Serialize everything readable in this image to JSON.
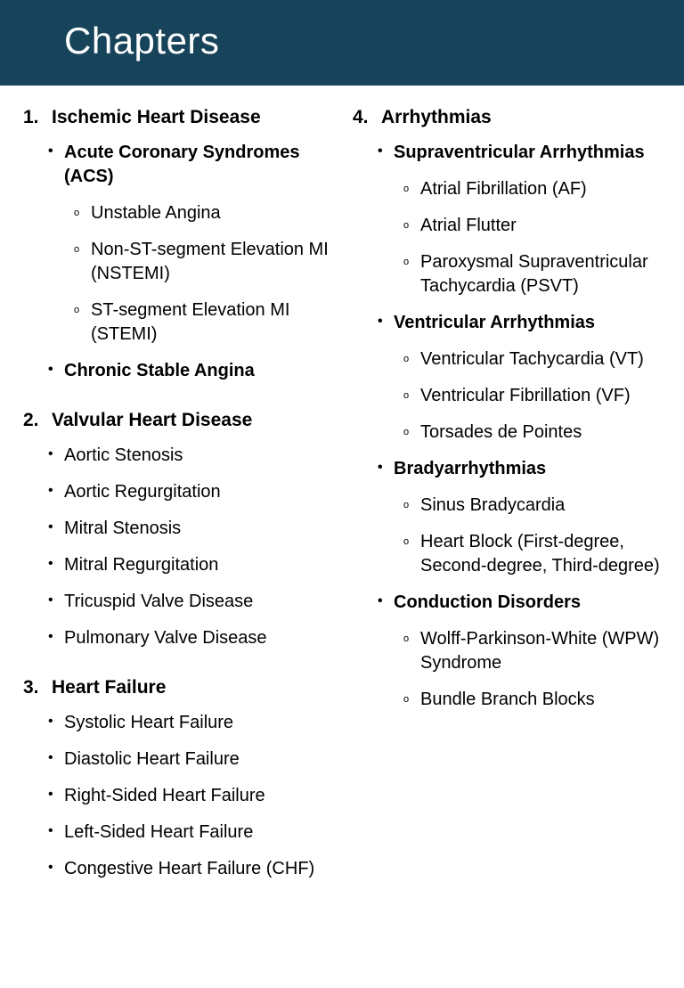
{
  "header": {
    "title": "Chapters"
  },
  "colors": {
    "header_bg": "#17445a",
    "header_text": "#ffffff",
    "body_bg": "#ffffff",
    "body_text": "#000000"
  },
  "chapters": [
    {
      "number": "1.",
      "title": "Ischemic Heart Disease",
      "items": [
        {
          "label": "Acute Coronary Syndromes (ACS)",
          "bold": true,
          "children": [
            {
              "label": "Unstable Angina"
            },
            {
              "label": "Non-ST-segment Elevation MI (NSTEMI)"
            },
            {
              "label": "ST-segment Elevation MI (STEMI)"
            }
          ]
        },
        {
          "label": "Chronic Stable Angina",
          "bold": true
        }
      ]
    },
    {
      "number": "2.",
      "title": "Valvular Heart Disease",
      "items": [
        {
          "label": "Aortic Stenosis"
        },
        {
          "label": "Aortic Regurgitation"
        },
        {
          "label": "Mitral Stenosis"
        },
        {
          "label": "Mitral Regurgitation"
        },
        {
          "label": "Tricuspid Valve Disease"
        },
        {
          "label": "Pulmonary Valve Disease"
        }
      ]
    },
    {
      "number": "3.",
      "title": "Heart Failure",
      "items": [
        {
          "label": "Systolic Heart Failure"
        },
        {
          "label": "Diastolic Heart Failure"
        },
        {
          "label": "Right-Sided Heart Failure"
        },
        {
          "label": "Left-Sided Heart Failure"
        },
        {
          "label": "Congestive Heart Failure (CHF)"
        }
      ]
    },
    {
      "number": "4.",
      "title": "Arrhythmias",
      "items": [
        {
          "label": "Supraventricular Arrhythmias",
          "bold": true,
          "children": [
            {
              "label": "Atrial Fibrillation (AF)"
            },
            {
              "label": "Atrial Flutter"
            },
            {
              "label": "Paroxysmal Supraventricular Tachycardia (PSVT)"
            }
          ]
        },
        {
          "label": "Ventricular Arrhythmias",
          "bold": true,
          "children": [
            {
              "label": "Ventricular Tachycardia (VT)"
            },
            {
              "label": "Ventricular Fibrillation (VF)"
            },
            {
              "label": "Torsades de Pointes"
            }
          ]
        },
        {
          "label": "Bradyarrhythmias",
          "bold": true,
          "children": [
            {
              "label": "Sinus Bradycardia"
            },
            {
              "label": "Heart Block (First-degree, Second-degree, Third-degree)"
            }
          ]
        },
        {
          "label": "Conduction Disorders",
          "bold": true,
          "children": [
            {
              "label": "Wolff-Parkinson-White (WPW) Syndrome"
            },
            {
              "label": "Bundle Branch Blocks"
            }
          ]
        }
      ]
    }
  ],
  "layout": {
    "left_column_chapters": [
      0,
      1,
      2
    ],
    "right_column_chapters": [
      3
    ]
  }
}
